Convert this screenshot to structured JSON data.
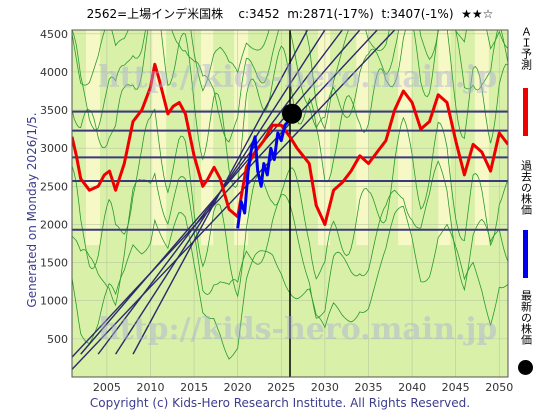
{
  "header": {
    "title": "2562=上場インデ米国株    c:3452  m:2871(-17%)  t:3407(-1%)  ★★☆"
  },
  "side_label": "Generated on Monday 2026/1/5.",
  "footer": {
    "copyright": "Copyright (c) Kids-Hero Research Institute. All Rights Reserved."
  },
  "watermarks": {
    "top": "http://kids-hero.main.jp",
    "bottom": "http://kids-hero.main.jp"
  },
  "legend": [
    {
      "label": "ＡＩ予測",
      "color": "#ee0000"
    },
    {
      "label": "過去の株価",
      "color": "#0000ee"
    },
    {
      "label": "最新の株価",
      "color": "#000000"
    }
  ],
  "colors": {
    "band_fill": "#d8f0a8",
    "band_light": "#fafac8",
    "green_line": "#2a9a2a",
    "hline": "#3a3a7a",
    "diag": "#2a2a6a",
    "ai": "#ee0000",
    "past": "#0000ee"
  },
  "chart_data": {
    "type": "line",
    "xlim": [
      2001,
      2051
    ],
    "ylim": [
      0,
      4550
    ],
    "x_ticks": [
      2005,
      2010,
      2015,
      2020,
      2025,
      2030,
      2035,
      2040,
      2045,
      2050
    ],
    "y_ticks": [
      500,
      1000,
      1500,
      2000,
      2500,
      3000,
      3500,
      4000,
      4500
    ],
    "horizontal_lines": [
      1930,
      2570,
      2880,
      3230,
      3480
    ],
    "current_year": 2026,
    "current_price": 3452,
    "diagonal_lines": [
      {
        "x0": 2001,
        "y0": 100,
        "x1": 2038,
        "y1": 4550
      },
      {
        "x0": 2001,
        "y0": 260,
        "x1": 2036,
        "y1": 4550
      },
      {
        "x0": 2002,
        "y0": 300,
        "x1": 2034,
        "y1": 4550
      },
      {
        "x0": 2004,
        "y0": 300,
        "x1": 2032,
        "y1": 4550
      },
      {
        "x0": 2006,
        "y0": 300,
        "x1": 2030,
        "y1": 4550
      },
      {
        "x0": 2008,
        "y0": 300,
        "x1": 2028,
        "y1": 4550
      }
    ],
    "series": [
      {
        "name": "ＡＩ予測",
        "x": [
          2001,
          2001.5,
          2002,
          2003,
          2004,
          2004.7,
          2005.3,
          2006,
          2007,
          2008,
          2009,
          2010,
          2010.5,
          2011,
          2012,
          2012.6,
          2013.3,
          2014,
          2015,
          2016,
          2016.6,
          2017.3,
          2018,
          2019,
          2020,
          2021,
          2022,
          2023,
          2024,
          2025,
          2026,
          2026.8,
          2027.5,
          2028.2,
          2029,
          2030,
          2031,
          2032,
          2033,
          2034,
          2035,
          2036,
          2037,
          2038,
          2039,
          2040,
          2041,
          2042,
          2043,
          2044,
          2045,
          2046,
          2047,
          2048,
          2049,
          2050,
          2051
        ],
        "values": [
          3150,
          2900,
          2600,
          2450,
          2500,
          2650,
          2700,
          2450,
          2800,
          3350,
          3500,
          3800,
          4100,
          3900,
          3450,
          3550,
          3600,
          3450,
          2900,
          2500,
          2600,
          2750,
          2600,
          2200,
          2100,
          2750,
          2950,
          3100,
          3300,
          3300,
          3150,
          3000,
          2900,
          2800,
          2250,
          2000,
          2450,
          2550,
          2700,
          2900,
          2800,
          2950,
          3100,
          3500,
          3750,
          3600,
          3250,
          3350,
          3700,
          3600,
          3100,
          2650,
          3050,
          2950,
          2700,
          3200,
          3050
        ]
      },
      {
        "name": "過去の株価",
        "x": [
          2020,
          2020.4,
          2020.8,
          2021.2,
          2021.6,
          2022,
          2022.3,
          2022.7,
          2023,
          2023.4,
          2023.8,
          2024.2,
          2024.6,
          2025,
          2025.4,
          2025.8,
          2026
        ],
        "values": [
          1950,
          2300,
          2150,
          2700,
          3000,
          3150,
          2700,
          2500,
          2800,
          2650,
          3000,
          2850,
          3200,
          3100,
          3300,
          3350,
          3452
        ]
      }
    ]
  }
}
